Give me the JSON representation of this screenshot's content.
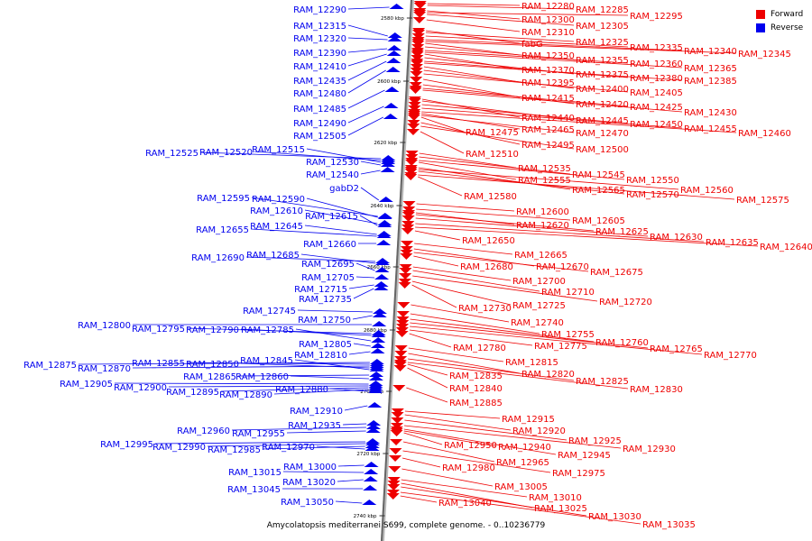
{
  "legend": {
    "forward_label": "Forward",
    "reverse_label": "Reverse",
    "forward_color": "#ee0000",
    "reverse_color": "#0000ee"
  },
  "caption": "Amycolatopsis mediterranei S699, complete genome. - 0..10236779",
  "axis": {
    "ticks": [
      "2580 kbp",
      "2600 kbp",
      "2620 kbp",
      "2640 kbp",
      "2660 kbp",
      "2680 kbp",
      "2700 kbp",
      "2720 kbp",
      "2740 kbp"
    ]
  },
  "genes": {
    "reverse": [
      "RAM_12290",
      "RAM_12315",
      "RAM_12320",
      "RAM_12390",
      "RAM_12410",
      "RAM_12435",
      "RAM_12480",
      "RAM_12485",
      "RAM_12490",
      "RAM_12505",
      "RAM_12525",
      "RAM_12520",
      "RAM_12515",
      "RAM_12530",
      "RAM_12540",
      "gabD2",
      "RAM_12595",
      "RAM_12590",
      "RAM_12610",
      "RAM_12615",
      "RAM_12655",
      "RAM_12645",
      "RAM_12660",
      "RAM_12690",
      "RAM_12685",
      "RAM_12695",
      "RAM_12705",
      "RAM_12715",
      "RAM_12735",
      "RAM_12745",
      "RAM_12750",
      "RAM_12800",
      "RAM_12795",
      "RAM_12790",
      "RAM_12785",
      "RAM_12805",
      "RAM_12810",
      "RAM_12875",
      "RAM_12870",
      "RAM_12855",
      "RAM_12850",
      "RAM_12845",
      "RAM_12865",
      "RAM_12860",
      "RAM_12905",
      "RAM_12900",
      "RAM_12895",
      "RAM_12890",
      "RAM_12880",
      "RAM_12910",
      "RAM_12935",
      "RAM_12960",
      "RAM_12955",
      "RAM_12995",
      "RAM_12990",
      "RAM_12985",
      "RAM_12970",
      "RAM_13000",
      "RAM_13015",
      "RAM_13020",
      "RAM_13045",
      "RAM_13050"
    ],
    "forward": [
      "RAM_12280",
      "RAM_12285",
      "RAM_12300",
      "RAM_12295",
      "RAM_12305",
      "RAM_12310",
      "fabG",
      "RAM_12325",
      "RAM_12335",
      "RAM_12340",
      "RAM_12345",
      "RAM_12350",
      "RAM_12355",
      "RAM_12360",
      "RAM_12365",
      "RAM_12370",
      "RAM_12375",
      "RAM_12380",
      "RAM_12385",
      "RAM_12395",
      "RAM_12400",
      "RAM_12405",
      "RAM_12415",
      "RAM_12420",
      "RAM_12425",
      "RAM_12430",
      "RAM_12440",
      "RAM_12445",
      "RAM_12450",
      "RAM_12455",
      "RAM_12460",
      "RAM_12465",
      "RAM_12470",
      "RAM_12475",
      "RAM_12495",
      "RAM_12500",
      "RAM_12510",
      "RAM_12535",
      "RAM_12545",
      "RAM_12550",
      "RAM_12555",
      "RAM_12565",
      "RAM_12560",
      "RAM_12570",
      "RAM_12575",
      "RAM_12580",
      "RAM_12600",
      "RAM_12605",
      "RAM_12620",
      "RAM_12625",
      "RAM_12630",
      "RAM_12635",
      "RAM_12640",
      "RAM_12650",
      "RAM_12665",
      "RAM_12670",
      "RAM_12675",
      "RAM_12680",
      "RAM_12700",
      "RAM_12710",
      "RAM_12720",
      "RAM_12725",
      "RAM_12730",
      "RAM_12740",
      "RAM_12755",
      "RAM_12760",
      "RAM_12765",
      "RAM_12770",
      "RAM_12775",
      "RAM_12780",
      "RAM_12815",
      "RAM_12820",
      "RAM_12825",
      "RAM_12830",
      "RAM_12835",
      "RAM_12840",
      "RAM_12885",
      "RAM_12915",
      "RAM_12920",
      "RAM_12925",
      "RAM_12930",
      "RAM_12945",
      "RAM_12940",
      "RAM_12950",
      "RAM_12965",
      "RAM_12975",
      "RAM_12980",
      "RAM_13005",
      "RAM_13010",
      "RAM_13025",
      "RAM_13030",
      "RAM_13035",
      "RAM_13040"
    ]
  }
}
